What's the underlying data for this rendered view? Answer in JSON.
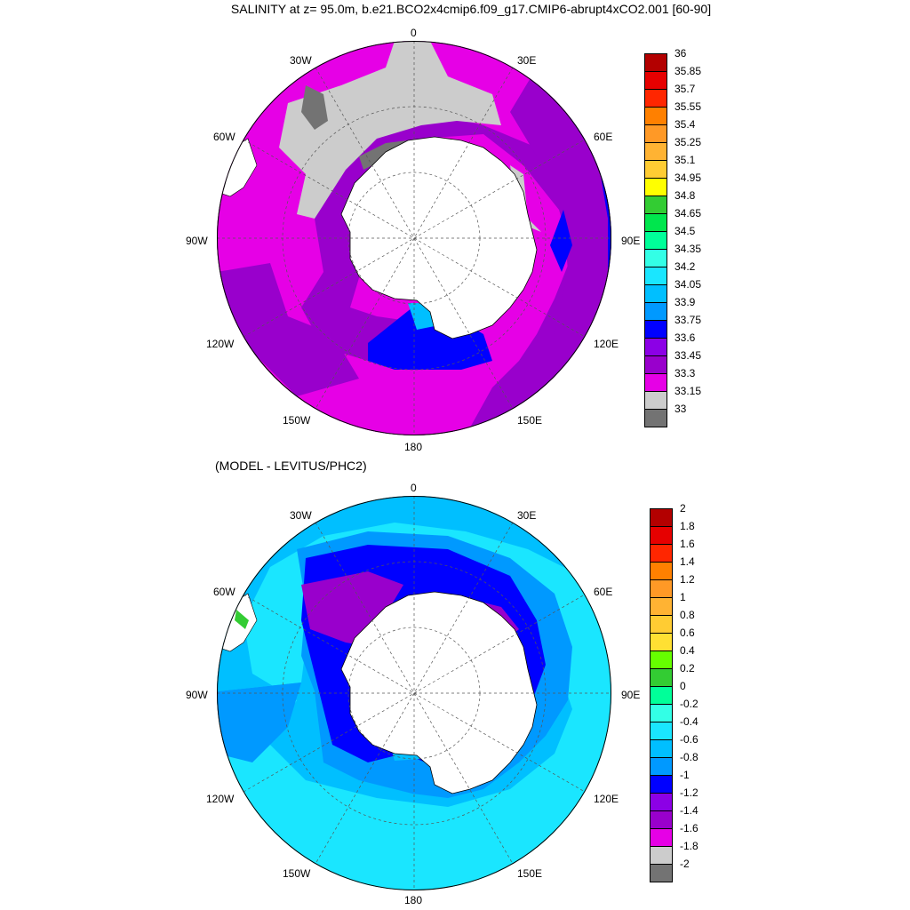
{
  "title": "SALINITY at z=  95.0m, b.e21.BCO2x4cmip6.f09_g17.CMIP6-abrupt4xCO2.001 [60-90]",
  "subtitle": "(MODEL - LEVITUS/PHC2)",
  "longitude_labels": [
    "0",
    "30E",
    "60E",
    "90E",
    "120E",
    "150E",
    "180",
    "150W",
    "120W",
    "90W",
    "60W",
    "30W"
  ],
  "top_colorbar": {
    "labels": [
      "36",
      "35.85",
      "35.7",
      "35.55",
      "35.4",
      "35.25",
      "35.1",
      "34.95",
      "34.8",
      "34.65",
      "34.5",
      "34.35",
      "34.2",
      "34.05",
      "33.9",
      "33.75",
      "33.6",
      "33.45",
      "33.3",
      "33.15",
      "33"
    ],
    "colors": [
      "#b30000",
      "#e60000",
      "#ff2600",
      "#ff8000",
      "#ff9926",
      "#ffb333",
      "#ffcc33",
      "#ffff00",
      "#33cc33",
      "#00e64d",
      "#00ff99",
      "#33ffe6",
      "#1ae6ff",
      "#00bfff",
      "#0099ff",
      "#0000ff",
      "#8c00e6",
      "#9900cc",
      "#e600e6",
      "#cccccc",
      "#737373"
    ]
  },
  "bottom_colorbar": {
    "labels": [
      "2",
      "1.8",
      "1.6",
      "1.4",
      "1.2",
      "1",
      "0.8",
      "0.6",
      "0.4",
      "0.2",
      "0",
      "-0.2",
      "-0.4",
      "-0.6",
      "-0.8",
      "-1",
      "-1.2",
      "-1.4",
      "-1.6",
      "-1.8",
      "-2"
    ],
    "colors": [
      "#b30000",
      "#e60000",
      "#ff2600",
      "#ff8000",
      "#ff9926",
      "#ffb333",
      "#ffcc33",
      "#ffe033",
      "#66ff00",
      "#33cc33",
      "#00ff99",
      "#33ffe6",
      "#1ae6ff",
      "#00bfff",
      "#0099ff",
      "#0000ff",
      "#8c00e6",
      "#9900cc",
      "#e600e6",
      "#cccccc",
      "#737373"
    ]
  },
  "map_colors": {
    "top": {
      "ring1": "#9900cc",
      "ring2": "#e600e6",
      "gray": "#cccccc",
      "dark": "#737373",
      "blue": "#0000ff",
      "lightblue": "#00bfff",
      "land": "#ffffff"
    },
    "bottom": {
      "base": "#1ae6ff",
      "mid": "#00bfff",
      "deep": "#0099ff",
      "blue": "#0000ff",
      "purple": "#9900cc",
      "magenta": "#e600e6",
      "land": "#ffffff"
    }
  }
}
